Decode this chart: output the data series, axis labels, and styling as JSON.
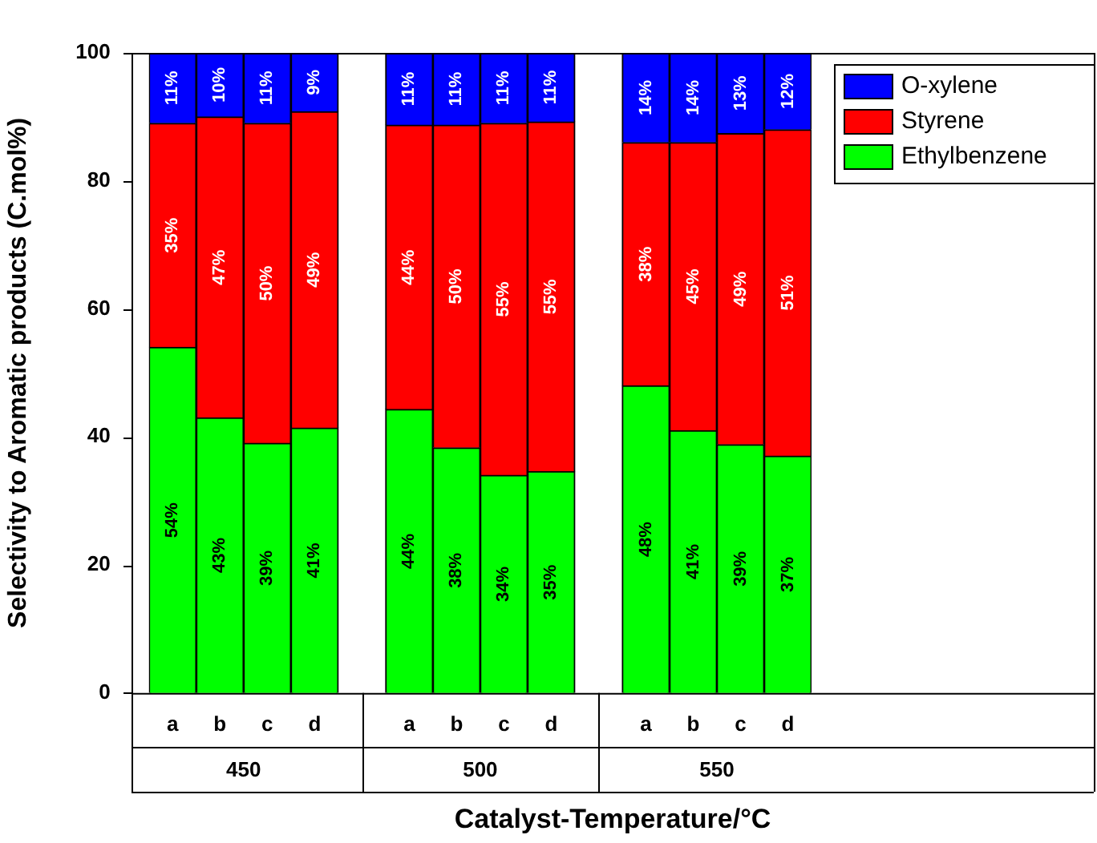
{
  "chart_data": {
    "type": "bar",
    "stacked": true,
    "xlabel": "Catalyst-Temperature/°C",
    "ylabel": "Selectivity to Aromatic products (C.mol%)",
    "categories": [
      "a",
      "b",
      "c",
      "d",
      null,
      "a",
      "b",
      "c",
      "d",
      null,
      "a",
      "b",
      "c",
      "d"
    ],
    "annotations": [
      "450",
      "500",
      "550"
    ],
    "ylim": [
      0,
      100
    ],
    "yticks": [
      0,
      20,
      40,
      60,
      80,
      100
    ],
    "grid": false,
    "legend": "top right",
    "series": [
      {
        "name": "Ethylbenzene",
        "color": "#00ff00",
        "values": [
          54,
          43,
          39,
          41.4,
          null,
          44.3,
          38.3,
          34,
          34.6,
          null,
          48,
          41,
          38.8,
          37
        ],
        "value_labels": [
          "54%",
          "43%",
          "39%",
          "41%",
          null,
          "44%",
          "38%",
          "34%",
          "35%",
          null,
          "48%",
          "41%",
          "39%",
          "37%"
        ]
      },
      {
        "name": "Styrene",
        "color": "#ff0000",
        "values": [
          35,
          47,
          50,
          49.4,
          null,
          44.4,
          50.4,
          55,
          54.6,
          null,
          38,
          45,
          48.6,
          51
        ],
        "value_labels": [
          "35%",
          "47%",
          "50%",
          "49%",
          null,
          "44%",
          "50%",
          "55%",
          "55%",
          null,
          "38%",
          "45%",
          "49%",
          "51%"
        ]
      },
      {
        "name": "O-xylene",
        "color": "#0000ff",
        "values": [
          11,
          10,
          11,
          9.2,
          null,
          11.3,
          11.3,
          11,
          10.8,
          null,
          14,
          14,
          12.6,
          12
        ],
        "value_labels": [
          "11%",
          "10%",
          "11%",
          "9%",
          null,
          "11%",
          "11%",
          "11%",
          "11%",
          null,
          "14%",
          "14%",
          "13%",
          "12%"
        ]
      }
    ]
  }
}
